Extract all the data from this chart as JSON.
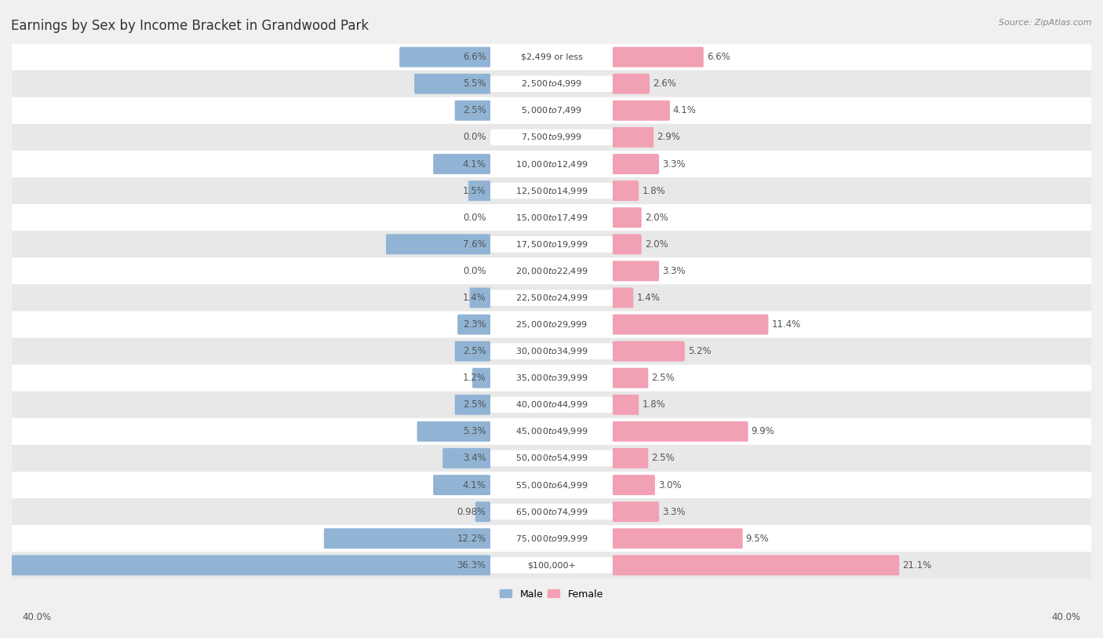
{
  "title": "Earnings by Sex by Income Bracket in Grandwood Park",
  "source": "Source: ZipAtlas.com",
  "categories": [
    "$2,499 or less",
    "$2,500 to $4,999",
    "$5,000 to $7,499",
    "$7,500 to $9,999",
    "$10,000 to $12,499",
    "$12,500 to $14,999",
    "$15,000 to $17,499",
    "$17,500 to $19,999",
    "$20,000 to $22,499",
    "$22,500 to $24,999",
    "$25,000 to $29,999",
    "$30,000 to $34,999",
    "$35,000 to $39,999",
    "$40,000 to $44,999",
    "$45,000 to $49,999",
    "$50,000 to $54,999",
    "$55,000 to $64,999",
    "$65,000 to $74,999",
    "$75,000 to $99,999",
    "$100,000+"
  ],
  "male_values": [
    6.6,
    5.5,
    2.5,
    0.0,
    4.1,
    1.5,
    0.0,
    7.6,
    0.0,
    1.4,
    2.3,
    2.5,
    1.2,
    2.5,
    5.3,
    3.4,
    4.1,
    0.98,
    12.2,
    36.3
  ],
  "female_values": [
    6.6,
    2.6,
    4.1,
    2.9,
    3.3,
    1.8,
    2.0,
    2.0,
    3.3,
    1.4,
    11.4,
    5.2,
    2.5,
    1.8,
    9.9,
    2.5,
    3.0,
    3.3,
    9.5,
    21.1
  ],
  "male_color": "#91b4d5",
  "female_color": "#f2a0b4",
  "axis_max": 40.0,
  "bg_color": "#f0f0f0",
  "row_even_color": "#ffffff",
  "row_odd_color": "#e8e8e8",
  "title_fontsize": 12,
  "label_fontsize": 8.5,
  "category_fontsize": 8.0,
  "legend_fontsize": 9,
  "source_fontsize": 8
}
